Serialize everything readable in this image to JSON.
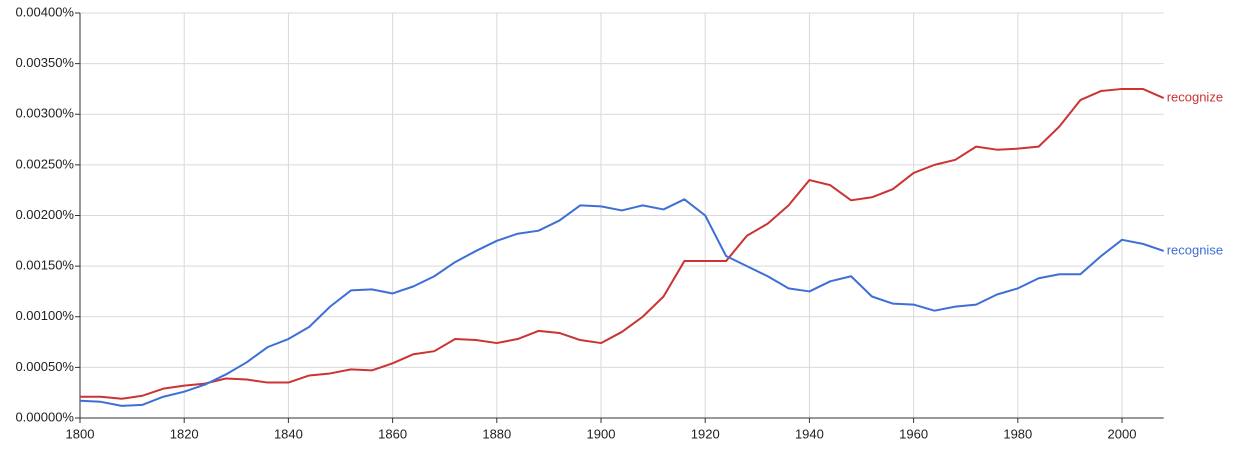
{
  "chart_data": {
    "type": "line",
    "x": [
      1800,
      1804,
      1808,
      1812,
      1816,
      1820,
      1824,
      1828,
      1832,
      1836,
      1840,
      1844,
      1848,
      1852,
      1856,
      1860,
      1864,
      1868,
      1872,
      1876,
      1880,
      1884,
      1888,
      1892,
      1896,
      1900,
      1904,
      1908,
      1912,
      1916,
      1920,
      1924,
      1928,
      1932,
      1936,
      1940,
      1944,
      1948,
      1952,
      1956,
      1960,
      1964,
      1968,
      1972,
      1976,
      1980,
      1984,
      1988,
      1992,
      1996,
      2000,
      2004,
      2008
    ],
    "series": [
      {
        "name": "recognize",
        "color": "#cc3333",
        "values": [
          0.00021,
          0.00021,
          0.00019,
          0.00022,
          0.00029,
          0.00032,
          0.00034,
          0.00039,
          0.00038,
          0.00035,
          0.00035,
          0.00042,
          0.00044,
          0.00048,
          0.00047,
          0.00054,
          0.00063,
          0.00066,
          0.00078,
          0.00077,
          0.00074,
          0.00078,
          0.00086,
          0.00084,
          0.00077,
          0.00074,
          0.00085,
          0.001,
          0.0012,
          0.00155,
          0.00155,
          0.00155,
          0.0018,
          0.00192,
          0.0021,
          0.00235,
          0.0023,
          0.00215,
          0.00218,
          0.00226,
          0.00242,
          0.0025,
          0.00255,
          0.00268,
          0.00265,
          0.00266,
          0.00268,
          0.00288,
          0.00314,
          0.00323,
          0.00325,
          0.00325,
          0.00316
        ]
      },
      {
        "name": "recognise",
        "color": "#3d6fd6",
        "values": [
          0.00017,
          0.00016,
          0.00012,
          0.00013,
          0.00021,
          0.00026,
          0.00033,
          0.00043,
          0.00055,
          0.0007,
          0.00078,
          0.0009,
          0.0011,
          0.00126,
          0.00127,
          0.00123,
          0.0013,
          0.0014,
          0.00154,
          0.00165,
          0.00175,
          0.00182,
          0.00185,
          0.00195,
          0.0021,
          0.00209,
          0.00205,
          0.0021,
          0.00206,
          0.00216,
          0.002,
          0.0016,
          0.0015,
          0.0014,
          0.00128,
          0.00125,
          0.00135,
          0.0014,
          0.0012,
          0.00113,
          0.00112,
          0.00106,
          0.0011,
          0.00112,
          0.00122,
          0.00128,
          0.00138,
          0.00142,
          0.00142,
          0.0016,
          0.00176,
          0.00172,
          0.00165
        ]
      }
    ],
    "xlim": [
      1800,
      2008
    ],
    "xticks": [
      1800,
      1820,
      1840,
      1860,
      1880,
      1900,
      1920,
      1940,
      1960,
      1980,
      2000
    ],
    "ylim": [
      0,
      0.004
    ],
    "yticks": [
      {
        "value": 0,
        "label": "0.00000%"
      },
      {
        "value": 0.0005,
        "label": "0.00050%"
      },
      {
        "value": 0.001,
        "label": "0.00100%"
      },
      {
        "value": 0.0015,
        "label": "0.00150%"
      },
      {
        "value": 0.002,
        "label": "0.00200%"
      },
      {
        "value": 0.0025,
        "label": "0.00250%"
      },
      {
        "value": 0.003,
        "label": "0.00300%"
      },
      {
        "value": 0.0035,
        "label": "0.00350%"
      },
      {
        "value": 0.004,
        "label": "0.00400%"
      }
    ],
    "grid": true
  }
}
